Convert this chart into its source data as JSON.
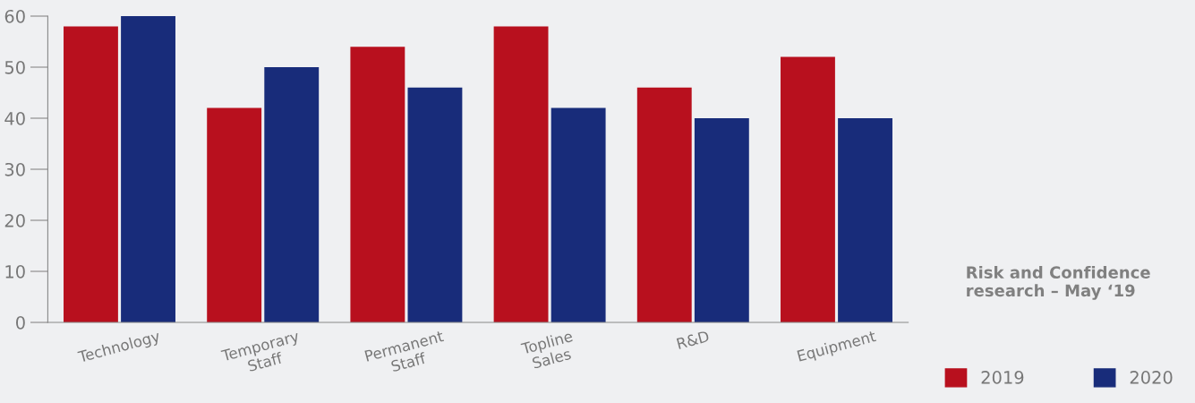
{
  "chart_data": {
    "type": "bar",
    "categories": [
      "Technology",
      "Temporary\nStaff",
      "Permanent\nStaff",
      "Topline\nSales",
      "R&D",
      "Equipment"
    ],
    "series": [
      {
        "name": "2019",
        "color": "#b8101e",
        "values": [
          58,
          42,
          54,
          58,
          46,
          52
        ]
      },
      {
        "name": "2020",
        "color": "#182c7a",
        "values": [
          60,
          50,
          46,
          42,
          40,
          40
        ]
      }
    ],
    "ylim": [
      0,
      60
    ],
    "yticks": [
      0,
      10,
      20,
      30,
      40,
      50,
      60
    ],
    "grid": false,
    "legend": "bottom right",
    "annotations": [
      "Risk and Confidence research – May ‘19"
    ]
  }
}
